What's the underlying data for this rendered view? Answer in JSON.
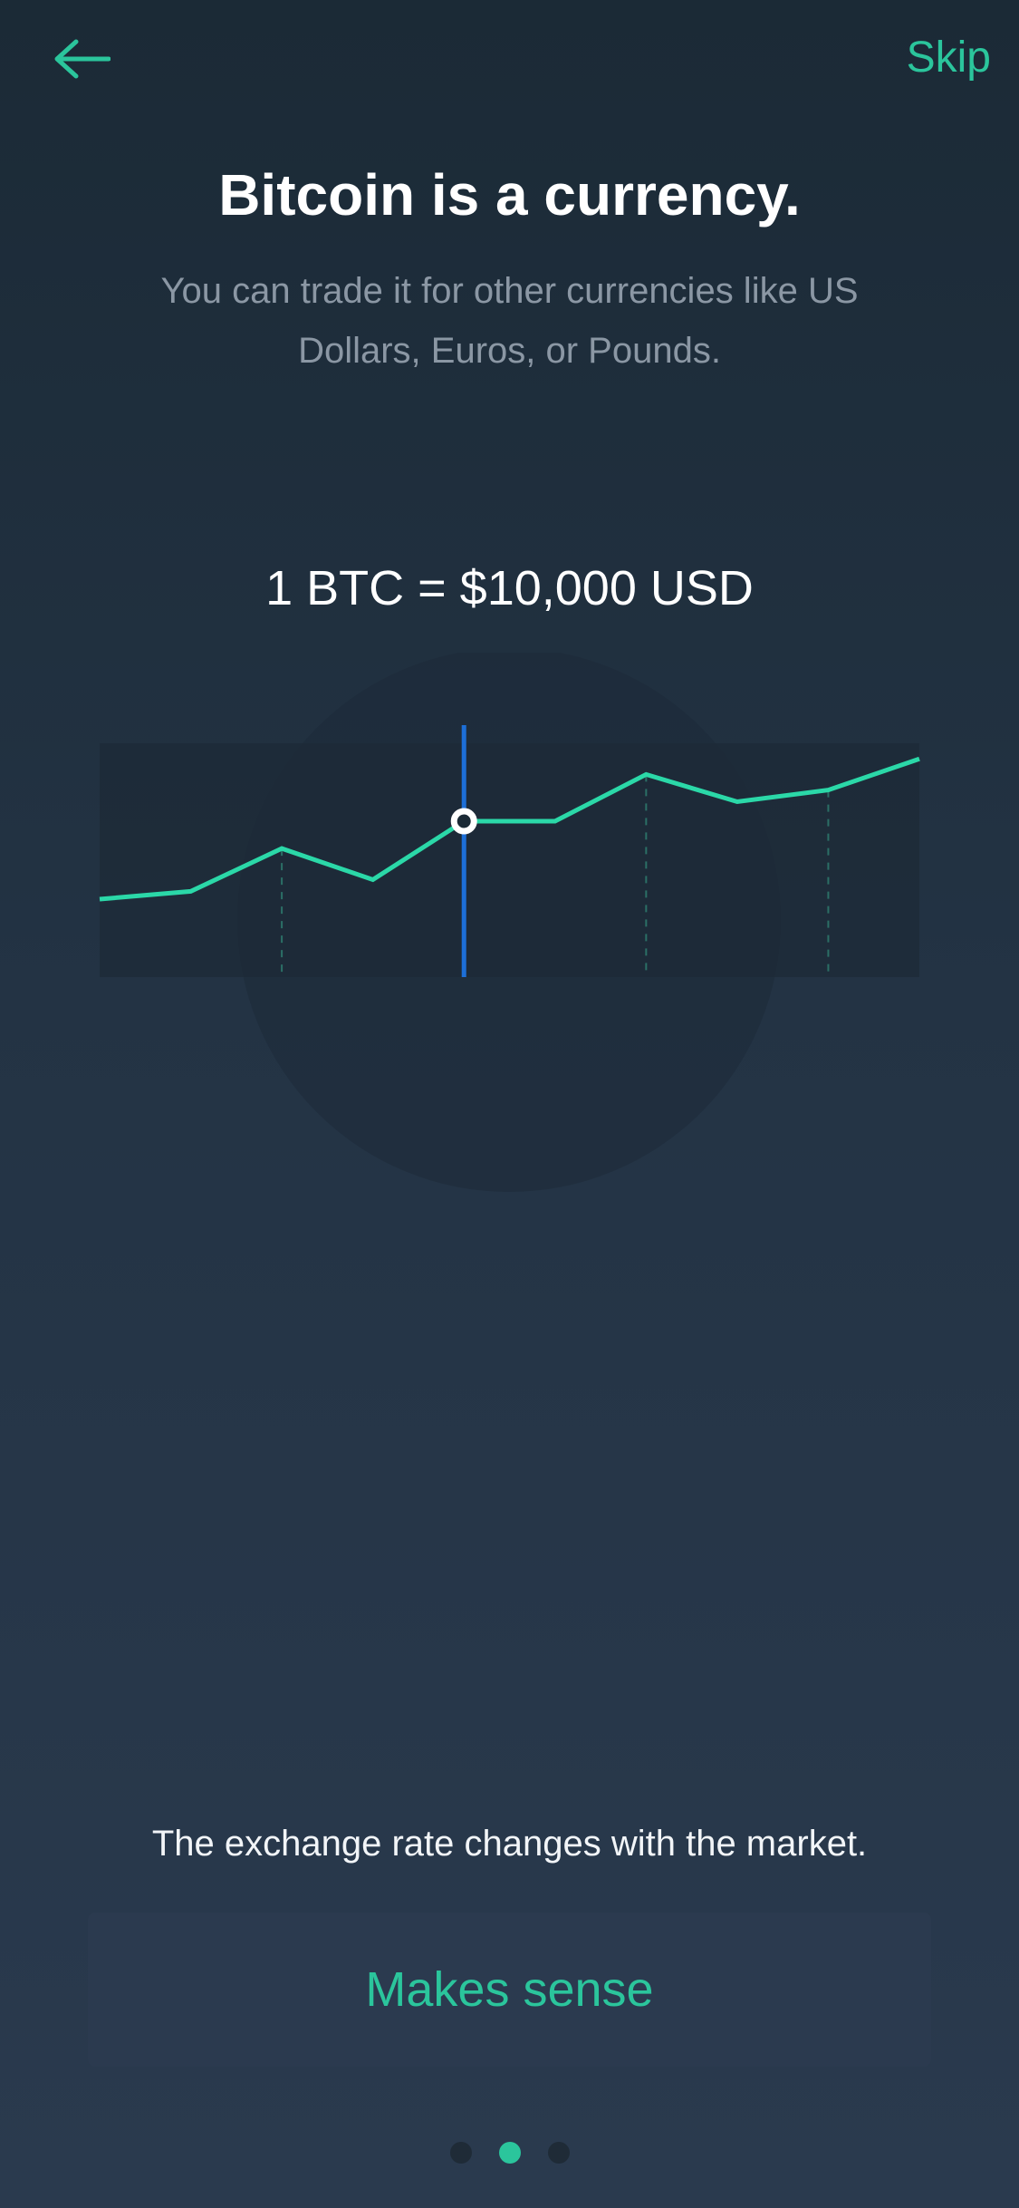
{
  "header": {
    "back_icon": "arrow-left-icon",
    "skip_label": "Skip"
  },
  "content": {
    "title": "Bitcoin is a currency.",
    "subtitle": "You can trade it for other currencies like US Dollars, Euros, or Pounds.",
    "rate": "1 BTC = $10,000 USD"
  },
  "chart_data": {
    "type": "line",
    "x": [
      0,
      1,
      2,
      3,
      4,
      5,
      6,
      7,
      8,
      9
    ],
    "values": [
      20,
      22,
      33,
      25,
      40,
      40,
      52,
      45,
      48,
      56
    ],
    "ylim": [
      0,
      60
    ],
    "selected_index": 4,
    "colors": {
      "line": "#2bd8a8",
      "cursor": "#1d6fd8",
      "marker": "#ffffff"
    }
  },
  "footer": {
    "note": "The exchange rate changes with the market.",
    "cta_label": "Makes sense"
  },
  "pagination": {
    "pages": 3,
    "active": 2
  },
  "colors": {
    "accent": "#2bc59c"
  }
}
